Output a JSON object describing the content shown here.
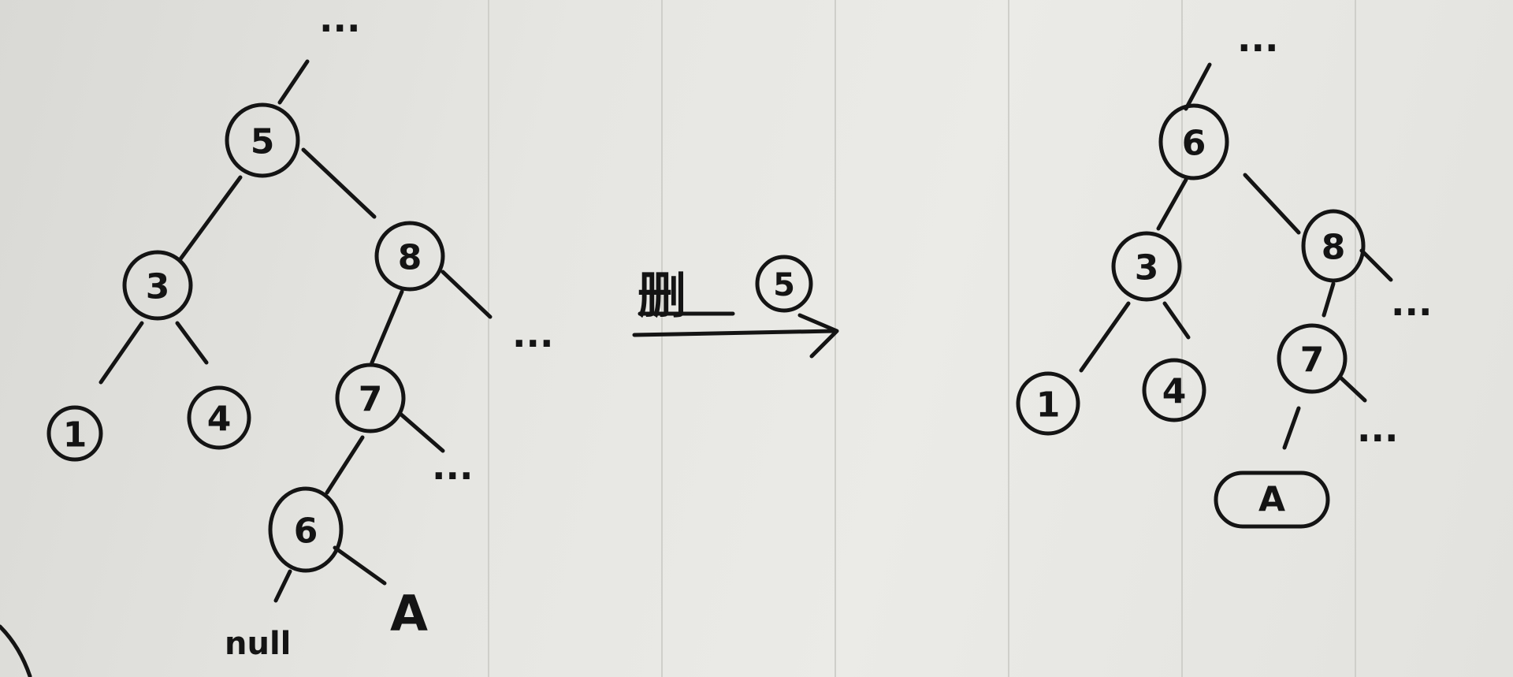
{
  "left_tree": {
    "top_ellipsis": "...",
    "root": "5",
    "node_3": "3",
    "node_8": "8",
    "node_1": "1",
    "node_4": "4",
    "node_7": "7",
    "node_6": "6",
    "right_ellipsis": "...",
    "node7_ellipsis": "...",
    "null_label": "null",
    "a_label": "A"
  },
  "operation": {
    "text": "删",
    "target": "5"
  },
  "right_tree": {
    "top_ellipsis": "...",
    "root": "6",
    "node_3": "3",
    "node_8": "8",
    "node_1": "1",
    "node_4": "4",
    "node_7": "7",
    "node8_ellipsis": "...",
    "node7_ellipsis": "...",
    "a_label": "A"
  }
}
